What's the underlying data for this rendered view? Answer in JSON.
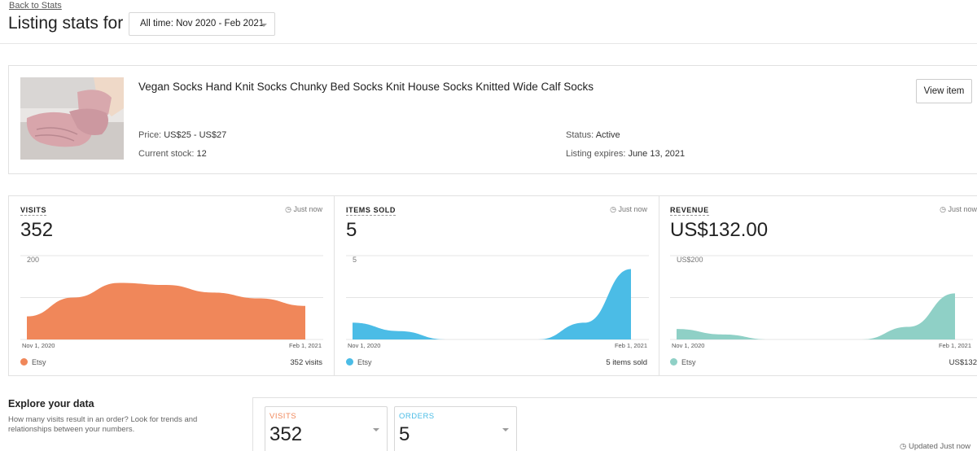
{
  "header": {
    "back_link": "Back to Stats",
    "title": "Listing stats for",
    "range_label": "All time: Nov 2020 - Feb 2021"
  },
  "listing": {
    "title": "Vegan Socks Hand Knit Socks Chunky Bed Socks Knit House Socks Knitted Wide Calf Socks",
    "view_button": "View item",
    "price_label": "Price:",
    "price_value": "US$25 - US$27",
    "stock_label": "Current stock:",
    "stock_value": "12",
    "status_label": "Status:",
    "status_value": "Active",
    "expires_label": "Listing expires:",
    "expires_value": "June 13, 2021"
  },
  "stats": [
    {
      "label": "VISITS",
      "time": "Just now",
      "value": "352",
      "y_tick": "200",
      "x_start": "Nov 1, 2020",
      "x_end": "Feb 1, 2021",
      "legend": "Etsy",
      "total": "352 visits",
      "color": "#f0875a"
    },
    {
      "label": "ITEMS SOLD",
      "time": "Just now",
      "value": "5",
      "y_tick": "5",
      "x_start": "Nov 1, 2020",
      "x_end": "Feb 1, 2021",
      "legend": "Etsy",
      "total": "5 items sold",
      "color": "#4bbce6"
    },
    {
      "label": "REVENUE",
      "time": "Just now",
      "value": "US$132.00",
      "y_tick": "US$200",
      "x_start": "Nov 1, 2020",
      "x_end": "Feb 1, 2021",
      "legend": "Etsy",
      "total": "US$132",
      "color": "#8fd0c6"
    }
  ],
  "chart_data": [
    {
      "type": "area",
      "title": "VISITS",
      "series": [
        {
          "name": "Etsy",
          "values": [
            55,
            100,
            135,
            130,
            112,
            98,
            80
          ]
        }
      ],
      "ylim": [
        0,
        200
      ],
      "x_labels": [
        "Nov 1, 2020",
        "Feb 1, 2021"
      ]
    },
    {
      "type": "area",
      "title": "ITEMS SOLD",
      "series": [
        {
          "name": "Etsy",
          "values": [
            1,
            0.5,
            0,
            0,
            0,
            1,
            4.2
          ]
        }
      ],
      "ylim": [
        0,
        5
      ],
      "x_labels": [
        "Nov 1, 2020",
        "Feb 1, 2021"
      ]
    },
    {
      "type": "area",
      "title": "REVENUE",
      "series": [
        {
          "name": "Etsy",
          "values": [
            25,
            12,
            0,
            0,
            0,
            30,
            110
          ]
        }
      ],
      "ylim": [
        0,
        200
      ],
      "x_labels": [
        "Nov 1, 2020",
        "Feb 1, 2021"
      ]
    }
  ],
  "explore": {
    "title": "Explore your data",
    "description": "How many visits result in an order? Look for trends and relationships between your numbers.",
    "metric1_label": "VISITS",
    "metric1_value": "352",
    "metric1_color": "#f0875a",
    "metric2_label": "ORDERS",
    "metric2_value": "5",
    "metric2_color": "#4bbce6",
    "updated": "Updated Just now"
  }
}
